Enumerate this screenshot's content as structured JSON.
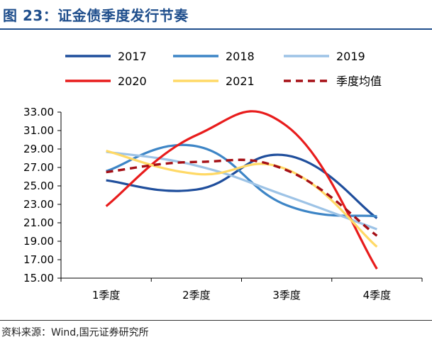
{
  "title": "图 23：证金债季度发行节奏",
  "source": "资料来源：Wind,国元证券研究所",
  "chart_data": {
    "type": "line",
    "categories": [
      "1季度",
      "2季度",
      "3季度",
      "4季度"
    ],
    "ylim": [
      15.0,
      33.0
    ],
    "yticks": [
      "15.00",
      "17.00",
      "19.00",
      "21.00",
      "23.00",
      "25.00",
      "27.00",
      "29.00",
      "31.00",
      "33.00"
    ],
    "grid": false,
    "legend_position": "top",
    "series": [
      {
        "name": "2017",
        "color": "#1f4e9c",
        "dash": false,
        "values": [
          25.6,
          24.6,
          28.3,
          21.5
        ]
      },
      {
        "name": "2018",
        "color": "#3d85c6",
        "dash": false,
        "values": [
          26.6,
          29.3,
          22.9,
          21.7
        ]
      },
      {
        "name": "2019",
        "color": "#9dc3e6",
        "dash": false,
        "values": [
          28.7,
          27.2,
          23.9,
          20.3
        ]
      },
      {
        "name": "2020",
        "color": "#e81c1c",
        "dash": false,
        "values": [
          22.8,
          30.5,
          31.5,
          16.0
        ]
      },
      {
        "name": "2021",
        "color": "#ffd966",
        "dash": false,
        "values": [
          28.8,
          26.3,
          26.8,
          18.4
        ]
      },
      {
        "name": "季度均值",
        "color": "#a50f15",
        "dash": true,
        "values": [
          26.5,
          27.6,
          26.7,
          19.6
        ]
      }
    ]
  }
}
